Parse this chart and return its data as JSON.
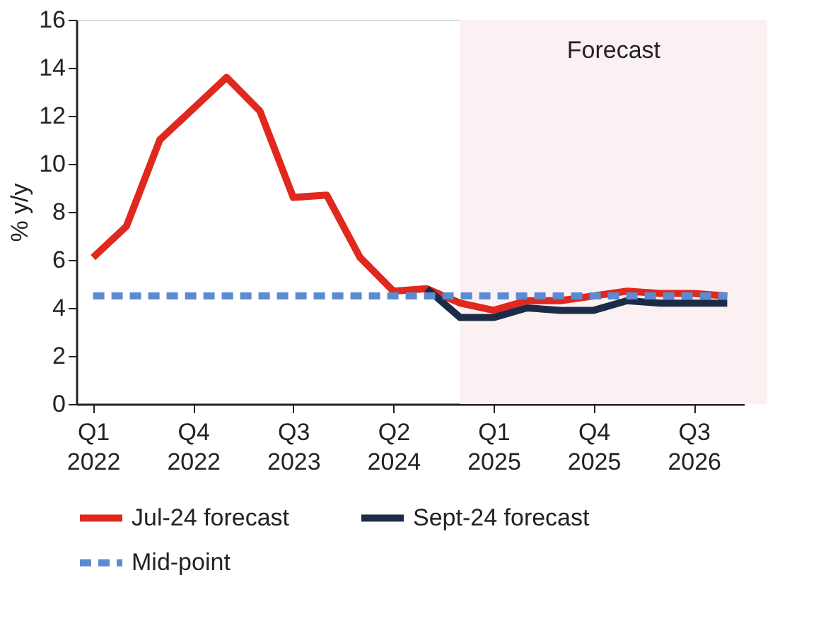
{
  "chart_data": {
    "type": "line",
    "categories": [
      "Q1 2022",
      null,
      null,
      "Q4 2022",
      null,
      null,
      "Q3 2023",
      null,
      null,
      "Q2 2024",
      null,
      null,
      "Q1 2025",
      null,
      null,
      "Q4 2025",
      null,
      null,
      "Q3 2026",
      null
    ],
    "series": [
      {
        "name": "Jul-24 forecast",
        "color": "#e0281e",
        "line_style": "solid",
        "values": [
          6.1,
          7.4,
          11.0,
          12.3,
          13.6,
          12.2,
          8.6,
          8.7,
          6.1,
          4.7,
          4.8,
          4.2,
          3.9,
          4.3,
          4.3,
          4.5,
          4.7,
          4.6,
          4.6,
          4.5
        ]
      },
      {
        "name": "Sept-24 forecast",
        "color": "#1c2b48",
        "line_style": "solid",
        "values": [
          null,
          null,
          null,
          null,
          null,
          null,
          null,
          null,
          null,
          null,
          4.8,
          3.6,
          3.6,
          4.0,
          3.9,
          3.9,
          4.3,
          4.2,
          4.2,
          4.2
        ]
      },
      {
        "name": "Mid-point",
        "color": "#5b8bd0",
        "line_style": "dashed",
        "values": [
          4.5,
          4.5,
          4.5,
          4.5,
          4.5,
          4.5,
          4.5,
          4.5,
          4.5,
          4.5,
          4.5,
          4.5,
          4.5,
          4.5,
          4.5,
          4.5,
          4.5,
          4.5,
          4.5,
          4.5
        ]
      }
    ],
    "ylabel": "% y/y",
    "ylim": [
      0,
      16
    ],
    "yticks": [
      0,
      2,
      4,
      6,
      8,
      10,
      12,
      14,
      16
    ],
    "annotations": [
      "Forecast"
    ],
    "grid": false,
    "legend": "bottom"
  }
}
